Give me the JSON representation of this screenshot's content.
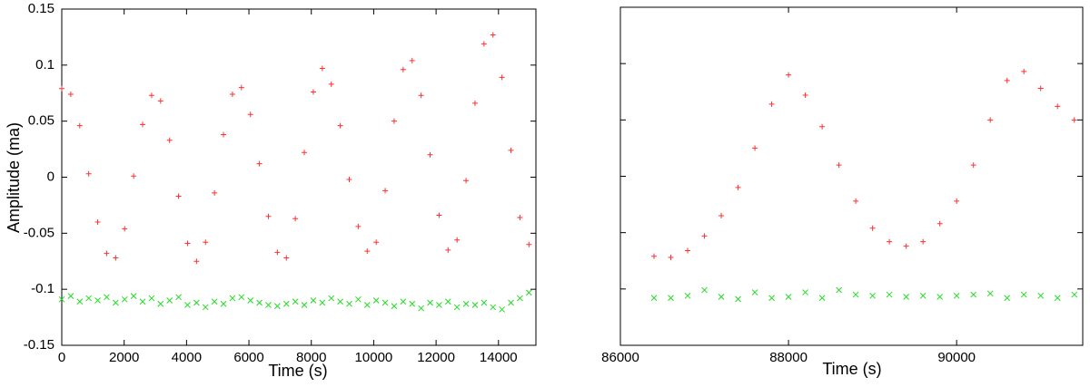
{
  "chart_data": [
    {
      "type": "scatter",
      "y_label": "Amplitude (ma)",
      "x_label": "Time (s)",
      "xlim": [
        0,
        15200
      ],
      "xticks": [
        0,
        2000,
        4000,
        6000,
        8000,
        10000,
        12000,
        14000
      ],
      "ylim": [
        -0.15,
        0.15
      ],
      "yticks": [
        -0.15,
        -0.1,
        -0.05,
        0,
        0.05,
        0.1,
        0.15
      ],
      "show_ytick_labels": true,
      "x": [
        0,
        288,
        576,
        864,
        1152,
        1440,
        1728,
        2016,
        2304,
        2592,
        2880,
        3168,
        3456,
        3744,
        4032,
        4320,
        4608,
        4896,
        5184,
        5472,
        5760,
        6048,
        6336,
        6624,
        6912,
        7200,
        7488,
        7776,
        8064,
        8352,
        8640,
        8928,
        9216,
        9504,
        9792,
        10080,
        10368,
        10656,
        10944,
        11232,
        11520,
        11808,
        12096,
        12384,
        12672,
        12960,
        13248,
        13536,
        13824,
        14112,
        14400,
        14688,
        14976
      ],
      "series": [
        {
          "color": "#ff3030",
          "marker": "plus",
          "values": [
            0.079,
            0.074,
            0.046,
            0.003,
            -0.04,
            -0.068,
            -0.072,
            -0.046,
            0.001,
            0.047,
            0.073,
            0.068,
            0.033,
            -0.017,
            -0.059,
            -0.075,
            -0.058,
            -0.014,
            0.038,
            0.074,
            0.08,
            0.056,
            0.012,
            -0.035,
            -0.067,
            -0.072,
            -0.037,
            0.022,
            0.076,
            0.097,
            0.083,
            0.046,
            -0.002,
            -0.044,
            -0.066,
            -0.058,
            -0.012,
            0.05,
            0.096,
            0.104,
            0.073,
            0.02,
            -0.034,
            -0.065,
            -0.056,
            -0.003,
            0.066,
            0.119,
            0.127,
            0.089,
            0.024,
            -0.036,
            -0.06
          ]
        },
        {
          "color": "#22dd22",
          "marker": "cross",
          "values": [
            -0.109,
            -0.106,
            -0.111,
            -0.108,
            -0.11,
            -0.107,
            -0.112,
            -0.109,
            -0.106,
            -0.111,
            -0.108,
            -0.113,
            -0.11,
            -0.107,
            -0.114,
            -0.112,
            -0.116,
            -0.111,
            -0.113,
            -0.108,
            -0.107,
            -0.11,
            -0.112,
            -0.114,
            -0.115,
            -0.113,
            -0.111,
            -0.114,
            -0.11,
            -0.112,
            -0.108,
            -0.111,
            -0.113,
            -0.109,
            -0.114,
            -0.11,
            -0.112,
            -0.115,
            -0.111,
            -0.113,
            -0.117,
            -0.112,
            -0.114,
            -0.111,
            -0.116,
            -0.113,
            -0.114,
            -0.112,
            -0.116,
            -0.118,
            -0.112,
            -0.108,
            -0.103
          ]
        }
      ]
    },
    {
      "type": "scatter",
      "x_label": "Time (s)",
      "xlim": [
        86000,
        91500
      ],
      "xticks": [
        86000,
        88000,
        90000
      ],
      "ylim": [
        -0.15,
        0.15
      ],
      "yticks": [
        -0.1,
        -0.05,
        0,
        0.05,
        0.1
      ],
      "show_ytick_labels": false,
      "x": [
        86400,
        86600,
        86800,
        87000,
        87200,
        87400,
        87600,
        87800,
        88000,
        88200,
        88400,
        88600,
        88800,
        89000,
        89200,
        89400,
        89600,
        89800,
        90000,
        90200,
        90400,
        90600,
        90800,
        91000,
        91200,
        91400
      ],
      "series": [
        {
          "color": "#ff3030",
          "marker": "plus",
          "values": [
            -0.071,
            -0.072,
            -0.066,
            -0.053,
            -0.035,
            -0.01,
            0.025,
            0.064,
            0.09,
            0.072,
            0.044,
            0.01,
            -0.022,
            -0.046,
            -0.058,
            -0.062,
            -0.058,
            -0.042,
            -0.022,
            0.01,
            0.05,
            0.085,
            0.093,
            0.078,
            0.062,
            0.05
          ]
        },
        {
          "color": "#22dd22",
          "marker": "cross",
          "values": [
            -0.108,
            -0.108,
            -0.106,
            -0.101,
            -0.107,
            -0.109,
            -0.103,
            -0.108,
            -0.107,
            -0.103,
            -0.108,
            -0.101,
            -0.105,
            -0.106,
            -0.105,
            -0.107,
            -0.106,
            -0.107,
            -0.106,
            -0.105,
            -0.104,
            -0.108,
            -0.105,
            -0.106,
            -0.108,
            -0.105
          ]
        }
      ]
    }
  ]
}
